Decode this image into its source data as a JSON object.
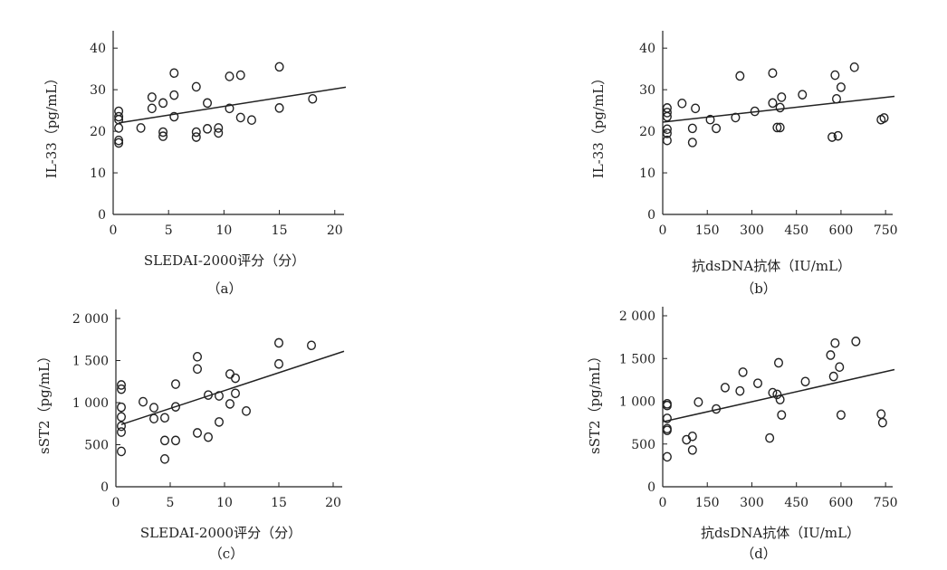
{
  "chart_data": [
    {
      "type": "scatter",
      "panel": "（a）",
      "xlabel": "SLEDAI-2000评分（分）",
      "ylabel": "IL-33（pg/mL）",
      "xlim": [
        0,
        21
      ],
      "ylim": [
        0,
        42
      ],
      "xticks": [
        0,
        5,
        10,
        15,
        20
      ],
      "xtick_labels": [
        "0",
        "5",
        "10",
        "15",
        "20"
      ],
      "yticks": [
        0,
        10,
        20,
        30,
        40
      ],
      "ytick_labels": [
        "0",
        "10",
        "20",
        "30",
        "40"
      ],
      "points": [
        [
          0.5,
          24.8
        ],
        [
          0.5,
          23.5
        ],
        [
          0.5,
          22.8
        ],
        [
          0.5,
          20.8
        ],
        [
          0.5,
          17.8
        ],
        [
          0.5,
          17.2
        ],
        [
          2.5,
          20.8
        ],
        [
          3.5,
          28.2
        ],
        [
          3.5,
          25.5
        ],
        [
          4.5,
          26.8
        ],
        [
          4.5,
          19.8
        ],
        [
          4.5,
          18.8
        ],
        [
          5.5,
          34.0
        ],
        [
          5.5,
          28.7
        ],
        [
          5.5,
          23.5
        ],
        [
          7.5,
          30.7
        ],
        [
          7.5,
          19.8
        ],
        [
          7.5,
          18.6
        ],
        [
          8.5,
          26.8
        ],
        [
          8.5,
          20.6
        ],
        [
          9.5,
          20.8
        ],
        [
          9.5,
          19.6
        ],
        [
          10.5,
          33.2
        ],
        [
          10.5,
          25.5
        ],
        [
          11.5,
          33.5
        ],
        [
          11.5,
          23.3
        ],
        [
          12.5,
          22.7
        ],
        [
          15,
          35.5
        ],
        [
          15,
          25.6
        ],
        [
          18,
          27.8
        ]
      ],
      "trend": [
        [
          0.5,
          22.0
        ],
        [
          21,
          30.6
        ]
      ]
    },
    {
      "type": "scatter",
      "panel": "（b）",
      "xlabel": "抗dsDNA抗体（IU/mL）",
      "ylabel": "IL-33（pg/mL）",
      "xlim": [
        0,
        780
      ],
      "ylim": [
        0,
        42
      ],
      "xticks": [
        0,
        150,
        300,
        450,
        600,
        750
      ],
      "xtick_labels": [
        "0",
        "150",
        "300",
        "450",
        "600",
        "750"
      ],
      "yticks": [
        0,
        10,
        20,
        30,
        40
      ],
      "ytick_labels": [
        "0",
        "10",
        "20",
        "30",
        "40"
      ],
      "points": [
        [
          15,
          25.6
        ],
        [
          15,
          24.5
        ],
        [
          15,
          23.5
        ],
        [
          15,
          20.5
        ],
        [
          15,
          19.5
        ],
        [
          15,
          17.8
        ],
        [
          65,
          26.7
        ],
        [
          100,
          17.3
        ],
        [
          100,
          20.7
        ],
        [
          110,
          25.5
        ],
        [
          160,
          22.8
        ],
        [
          180,
          20.7
        ],
        [
          245,
          23.3
        ],
        [
          260,
          33.3
        ],
        [
          310,
          24.8
        ],
        [
          370,
          34.0
        ],
        [
          370,
          26.8
        ],
        [
          385,
          20.9
        ],
        [
          395,
          20.9
        ],
        [
          395,
          25.7
        ],
        [
          400,
          28.2
        ],
        [
          470,
          28.8
        ],
        [
          570,
          18.6
        ],
        [
          580,
          33.5
        ],
        [
          585,
          27.8
        ],
        [
          590,
          18.9
        ],
        [
          600,
          30.6
        ],
        [
          645,
          35.4
        ],
        [
          735,
          22.8
        ],
        [
          745,
          23.2
        ]
      ],
      "trend": [
        [
          0,
          22.2
        ],
        [
          780,
          28.4
        ]
      ]
    },
    {
      "type": "scatter",
      "panel": "（c）",
      "xlabel": "SLEDAI-2000评分（分）",
      "ylabel": "sST2（pg/mL）",
      "xlim": [
        0,
        21
      ],
      "ylim": [
        0,
        2000
      ],
      "xticks": [
        0,
        5,
        10,
        15,
        20
      ],
      "xtick_labels": [
        "0",
        "5",
        "10",
        "15",
        "20"
      ],
      "yticks": [
        0,
        500,
        1000,
        1500,
        2000
      ],
      "ytick_labels": [
        "0",
        "500",
        "1 000",
        "1 500",
        "2 000"
      ],
      "points": [
        [
          0.5,
          1210
        ],
        [
          0.5,
          1160
        ],
        [
          0.5,
          945
        ],
        [
          0.5,
          830
        ],
        [
          0.5,
          720
        ],
        [
          0.5,
          650
        ],
        [
          0.5,
          420
        ],
        [
          2.5,
          1010
        ],
        [
          3.5,
          940
        ],
        [
          3.5,
          810
        ],
        [
          4.5,
          820
        ],
        [
          4.5,
          550
        ],
        [
          4.5,
          330
        ],
        [
          5.5,
          1220
        ],
        [
          5.5,
          950
        ],
        [
          5.5,
          550
        ],
        [
          7.5,
          1545
        ],
        [
          7.5,
          1400
        ],
        [
          7.5,
          640
        ],
        [
          8.5,
          1090
        ],
        [
          8.5,
          590
        ],
        [
          9.5,
          1080
        ],
        [
          9.5,
          770
        ],
        [
          10.5,
          1340
        ],
        [
          10.5,
          985
        ],
        [
          11,
          1290
        ],
        [
          11,
          1110
        ],
        [
          12,
          900
        ],
        [
          15,
          1710
        ],
        [
          15,
          1460
        ],
        [
          18,
          1680
        ]
      ],
      "trend": [
        [
          0.5,
          740
        ],
        [
          21,
          1610
        ]
      ]
    },
    {
      "type": "scatter",
      "panel": "（d）",
      "xlabel": "抗dsDNA抗体（IU/mL）",
      "ylabel": "sST2（pg/mL）",
      "xlim": [
        0,
        780
      ],
      "ylim": [
        0,
        2000
      ],
      "xticks": [
        0,
        150,
        300,
        450,
        600,
        750
      ],
      "xtick_labels": [
        "0",
        "150",
        "300",
        "450",
        "600",
        "750"
      ],
      "yticks": [
        0,
        500,
        1000,
        1500,
        2000
      ],
      "ytick_labels": [
        "0",
        "500",
        "1 000",
        "1 500",
        "2 000"
      ],
      "points": [
        [
          15,
          970
        ],
        [
          15,
          950
        ],
        [
          15,
          800
        ],
        [
          15,
          680
        ],
        [
          15,
          660
        ],
        [
          15,
          350
        ],
        [
          80,
          550
        ],
        [
          100,
          590
        ],
        [
          100,
          430
        ],
        [
          120,
          990
        ],
        [
          180,
          910
        ],
        [
          210,
          1160
        ],
        [
          260,
          1120
        ],
        [
          270,
          1340
        ],
        [
          320,
          1210
        ],
        [
          360,
          570
        ],
        [
          370,
          1100
        ],
        [
          385,
          1080
        ],
        [
          390,
          1450
        ],
        [
          395,
          1020
        ],
        [
          400,
          840
        ],
        [
          480,
          1230
        ],
        [
          565,
          1540
        ],
        [
          575,
          1290
        ],
        [
          580,
          1680
        ],
        [
          595,
          1400
        ],
        [
          600,
          840
        ],
        [
          650,
          1700
        ],
        [
          735,
          850
        ],
        [
          740,
          750
        ]
      ],
      "trend": [
        [
          0,
          760
        ],
        [
          780,
          1370
        ]
      ]
    }
  ]
}
